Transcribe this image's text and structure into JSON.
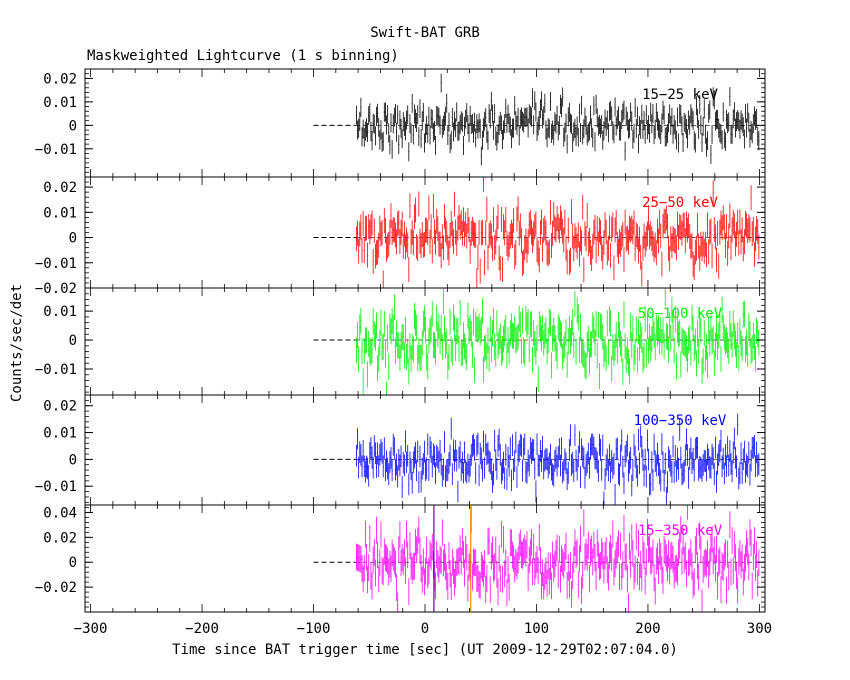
{
  "header": {
    "title": "Swift-BAT GRB",
    "subtitle": "Maskweighted Lightcurve (1 s binning)"
  },
  "axes": {
    "ylabel": "Counts/sec/det",
    "xlabel": "Time since BAT trigger time [sec] (UT 2009-12-29T02:07:04.0)"
  },
  "chart_data": {
    "type": "line",
    "xlim": [
      -305,
      305
    ],
    "xticks": [
      -300,
      -200,
      -100,
      0,
      100,
      200,
      300
    ],
    "data_range": [
      -62,
      300
    ],
    "bin_seconds": 1,
    "baseline_range": [
      -100,
      -62
    ],
    "markers": [
      {
        "x": 8,
        "color": "#660099"
      },
      {
        "x": 41,
        "color": "#ff8800"
      }
    ],
    "panels": [
      {
        "label": "15−25 keV",
        "color": "#000000",
        "ylim": [
          -0.022,
          0.024
        ],
        "yticks": [
          -0.01,
          0,
          0.01,
          0.02
        ],
        "ytick_labels": [
          "−0.01",
          "0",
          "0.01",
          "0.02"
        ],
        "noise_sigma": 0.0045,
        "spikes": [
          [
            14,
            0.018
          ],
          [
            50,
            -0.013
          ]
        ]
      },
      {
        "label": "25−50 keV",
        "color": "#ff0000",
        "ylim": [
          -0.02,
          0.024
        ],
        "yticks": [
          -0.02,
          -0.01,
          0,
          0.01,
          0.02
        ],
        "ytick_labels": [
          "−0.02",
          "−0.01",
          "0",
          "0.01",
          "0.02"
        ],
        "noise_sigma": 0.0055,
        "spikes": [
          [
            52,
            0.023
          ],
          [
            -38,
            -0.018
          ]
        ]
      },
      {
        "label": "50−100 keV",
        "color": "#00ee00",
        "ylim": [
          -0.019,
          0.018
        ],
        "yticks": [
          -0.01,
          0,
          0.01
        ],
        "ytick_labels": [
          "−0.01",
          "0",
          "0.01"
        ],
        "noise_sigma": 0.005,
        "spikes": [
          [
            -35,
            -0.019
          ],
          [
            215,
            0.016
          ]
        ]
      },
      {
        "label": "100−350 keV",
        "color": "#0000ff",
        "ylim": [
          -0.017,
          0.024
        ],
        "yticks": [
          -0.01,
          0,
          0.01,
          0.02
        ],
        "ytick_labels": [
          "−0.01",
          "0",
          "0.01",
          "0.02"
        ],
        "noise_sigma": 0.0045,
        "spikes": [
          [
            160,
            -0.016
          ],
          [
            280,
            0.013
          ]
        ]
      },
      {
        "label": "15−350 keV",
        "color": "#ff00ff",
        "ylim": [
          -0.04,
          0.046
        ],
        "yticks": [
          -0.02,
          0,
          0.02,
          0.04
        ],
        "ytick_labels": [
          "−0.02",
          "0",
          "0.02",
          "0.04"
        ],
        "noise_sigma": 0.012,
        "spikes": [
          [
            235,
            0.045
          ],
          [
            -25,
            -0.035
          ]
        ]
      }
    ]
  },
  "colors": {
    "frame": "#000000",
    "baseline": "#000000"
  }
}
